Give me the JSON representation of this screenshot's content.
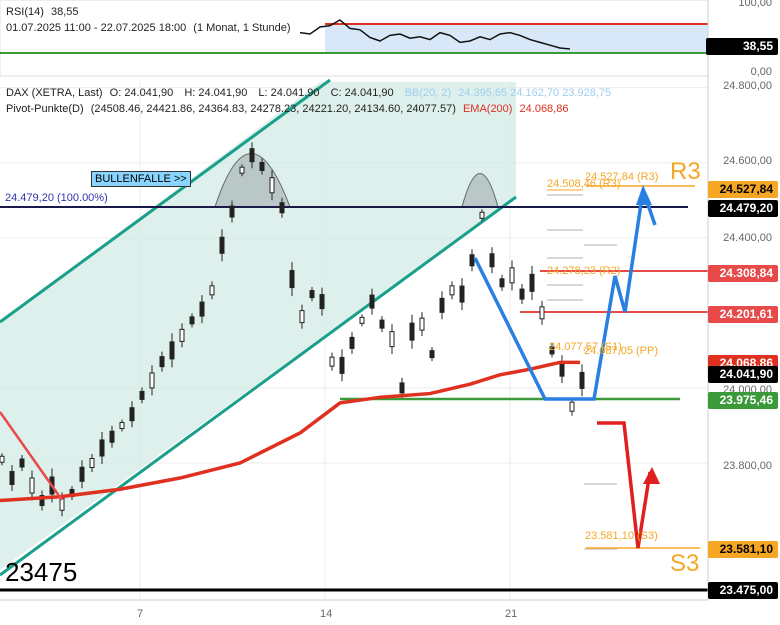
{
  "rsi_panel": {
    "title": "RSI(14)",
    "value": "38,55",
    "period": "01.07.2025 11:00 - 22.07.2025 18:00",
    "interval": "(1 Monat, 1 Stunde)",
    "axis_ticks": [
      "100,00",
      "0,00"
    ],
    "current_tag": "38,55"
  },
  "main_panel": {
    "instrument": "DAX (XETRA, Last)",
    "ohlc": {
      "O": "24.041,90",
      "H": "24.041,90",
      "L": "24.041,90",
      "C": "24.041,90"
    },
    "bb_label": "BB(20, 2)",
    "bb_values": "24.395,65  24.162,70  23.928,75",
    "pivot_label": "Pivot-Punkte(D)",
    "pivot_values": "(24508.46, 24421.86, 24364.83, 24278.23, 24221.20, 24134.60, 24077.57)",
    "ema_label": "EMA(200)",
    "ema_value": "24.068,86",
    "bullenfalle": "BULLENFALLE >>",
    "bullenfalle_level": "24.479,20 (100.00%)",
    "r3_big": "R3",
    "s3_big": "S3",
    "support_big": "23475",
    "pivot_labels": {
      "r3": "24.527,84 (R3)",
      "r3b": "24.508,46 (R3)",
      "r2": "24.278,23 (R2)",
      "s1": "24.077,57 (S1)",
      "pp": "24.087,05 (PP)",
      "s3": "23.581,10 (S3)"
    }
  },
  "y_axis": {
    "ticks": [
      "24.800,00",
      "24.600,00",
      "24.400,00",
      "24.000,00",
      "23.800,00"
    ],
    "tags": [
      {
        "label": "24.527,84",
        "color": "#f5a623",
        "text": "#000"
      },
      {
        "label": "24.479,20",
        "color": "#000000",
        "text": "#fff"
      },
      {
        "label": "24.308,84",
        "color": "#e84a4a",
        "text": "#fff"
      },
      {
        "label": "24.201,61",
        "color": "#e84a4a",
        "text": "#fff"
      },
      {
        "label": "24.068,86",
        "color": "#e03020",
        "text": "#fff"
      },
      {
        "label": "24.041,90",
        "color": "#000000",
        "text": "#fff"
      },
      {
        "label": "23.975,46",
        "color": "#3a9a3a",
        "text": "#fff"
      },
      {
        "label": "23.581,10",
        "color": "#f5a623",
        "text": "#000"
      },
      {
        "label": "23.475,00",
        "color": "#000000",
        "text": "#fff"
      }
    ]
  },
  "x_axis": {
    "ticks": [
      "7",
      "14",
      "21"
    ]
  },
  "chart_data": {
    "type": "line",
    "x_ticks": [
      "7",
      "14",
      "21"
    ],
    "y_range": [
      23450,
      24850
    ],
    "price_path": [
      [
        0,
        23810
      ],
      [
        10,
        23760
      ],
      [
        20,
        23800
      ],
      [
        30,
        23740
      ],
      [
        40,
        23700
      ],
      [
        50,
        23740
      ],
      [
        60,
        23690
      ],
      [
        70,
        23720
      ],
      [
        80,
        23770
      ],
      [
        90,
        23800
      ],
      [
        100,
        23840
      ],
      [
        110,
        23870
      ],
      [
        120,
        23900
      ],
      [
        130,
        23930
      ],
      [
        140,
        23980
      ],
      [
        150,
        24020
      ],
      [
        160,
        24070
      ],
      [
        170,
        24100
      ],
      [
        180,
        24140
      ],
      [
        190,
        24180
      ],
      [
        200,
        24210
      ],
      [
        210,
        24260
      ],
      [
        220,
        24380
      ],
      [
        230,
        24470
      ],
      [
        240,
        24580
      ],
      [
        250,
        24620
      ],
      [
        260,
        24590
      ],
      [
        270,
        24540
      ],
      [
        280,
        24480
      ],
      [
        290,
        24290
      ],
      [
        300,
        24190
      ],
      [
        310,
        24250
      ],
      [
        320,
        24230
      ],
      [
        330,
        24070
      ],
      [
        340,
        24060
      ],
      [
        350,
        24120
      ],
      [
        360,
        24180
      ],
      [
        370,
        24230
      ],
      [
        380,
        24170
      ],
      [
        390,
        24130
      ],
      [
        400,
        24000
      ],
      [
        410,
        24150
      ],
      [
        420,
        24170
      ],
      [
        430,
        24090
      ],
      [
        440,
        24220
      ],
      [
        450,
        24260
      ],
      [
        460,
        24250
      ],
      [
        470,
        24340
      ],
      [
        480,
        24460
      ],
      [
        490,
        24340
      ],
      [
        500,
        24280
      ],
      [
        510,
        24300
      ],
      [
        520,
        24250
      ],
      [
        530,
        24280
      ],
      [
        540,
        24200
      ],
      [
        550,
        24100
      ],
      [
        560,
        24050
      ],
      [
        570,
        23950
      ],
      [
        580,
        24020
      ]
    ],
    "ema200": [
      [
        0,
        23700
      ],
      [
        60,
        23710
      ],
      [
        120,
        23730
      ],
      [
        180,
        23760
      ],
      [
        240,
        23800
      ],
      [
        300,
        23880
      ],
      [
        340,
        23960
      ],
      [
        380,
        23975
      ],
      [
        430,
        23985
      ],
      [
        470,
        24010
      ],
      [
        500,
        24035
      ],
      [
        530,
        24050
      ],
      [
        560,
        24068
      ],
      [
        580,
        24068
      ]
    ],
    "rsi": [
      62,
      60,
      70,
      72,
      80,
      68,
      66,
      55,
      50,
      58,
      60,
      54,
      56,
      52,
      62,
      58,
      48,
      50,
      56,
      52,
      60,
      62,
      58,
      52,
      48,
      44,
      40,
      38.55
    ],
    "levels": {
      "ema200": 24068.86,
      "last": 24041.9,
      "bullenfalle": 24479.2,
      "support": 23975.46,
      "low": 23475.0
    }
  }
}
